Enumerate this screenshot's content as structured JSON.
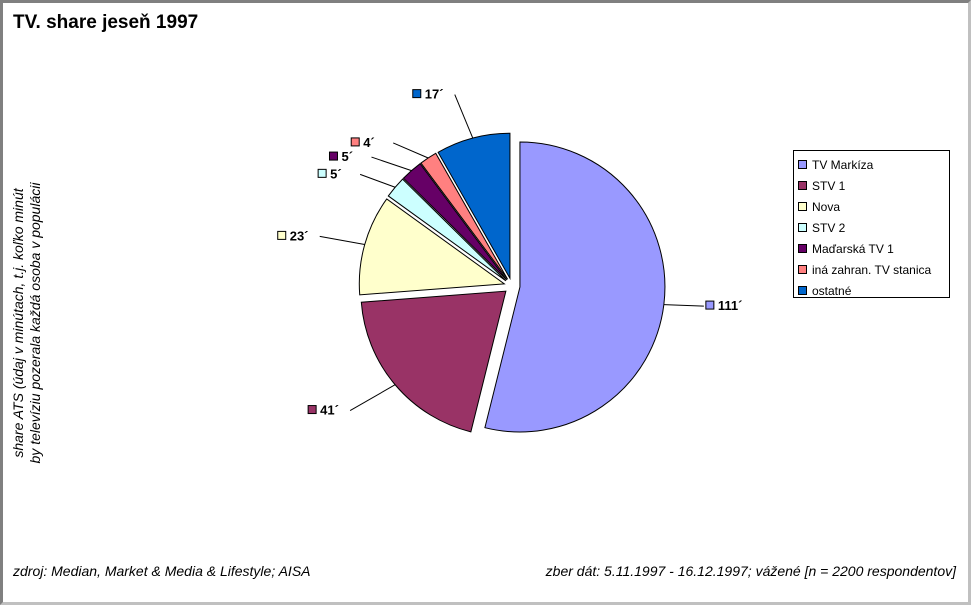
{
  "chart_data": {
    "type": "pie",
    "title": "TV. share jeseň 1997",
    "ylabel": [
      "share ATS (údaj v minútach, t.j. koľko minút",
      "by televíziu pozerala každá osoba v populácii"
    ],
    "source": "zdroj: Median, Market & Media & Lifestyle; AISA",
    "period": "zber dát: 5.11.1997 - 16.12.1997; vážené [n = 2200 respondentov]",
    "legend_position": "right",
    "slices": [
      {
        "name": "TV Markíza",
        "value": 111,
        "label": "111´",
        "color": "#9999ff"
      },
      {
        "name": "STV 1",
        "value": 41,
        "label": "41´",
        "color": "#993366"
      },
      {
        "name": "Nova",
        "value": 23,
        "label": "23´",
        "color": "#ffffcc"
      },
      {
        "name": "STV 2",
        "value": 5,
        "label": "5´",
        "color": "#ccffff"
      },
      {
        "name": "Maďarská TV 1",
        "value": 5,
        "label": "5´",
        "color": "#660066"
      },
      {
        "name": "iná zahran. TV stanica",
        "value": 4,
        "label": "4´",
        "color": "#ff8080"
      },
      {
        "name": "ostatné",
        "value": 17,
        "label": "17´",
        "color": "#0066cc"
      }
    ]
  }
}
